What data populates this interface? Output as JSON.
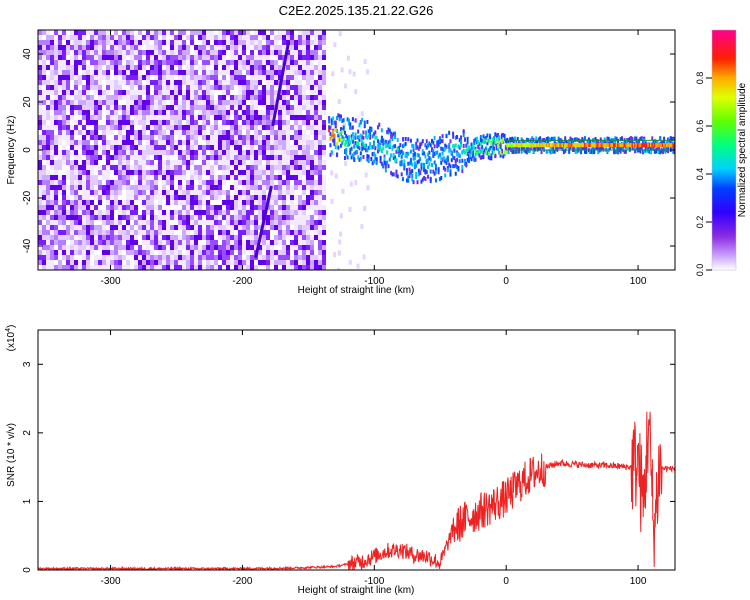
{
  "figure": {
    "title": "C2E2.2025.135.21.22.G26"
  },
  "chart_data": [
    {
      "type": "heatmap",
      "name": "spectrogram",
      "xlabel": "Height of straight line (km)",
      "ylabel": "Frequency (Hz)",
      "xlim": [
        -355,
        128
      ],
      "ylim": [
        -50,
        50
      ],
      "xticks": [
        -300,
        -200,
        -100,
        0,
        100
      ],
      "yticks": [
        -40,
        -20,
        0,
        20,
        40
      ],
      "colorbar": {
        "label": "Normalized spectral amplitude",
        "range": [
          0,
          1
        ],
        "ticks": [
          "0.0",
          "0.2",
          "0.4",
          "0.6",
          "0.8"
        ],
        "colors": [
          "#ffffff",
          "#b36bff",
          "#6a00ff",
          "#0000ff",
          "#00e6ff",
          "#00ff66",
          "#ccff00",
          "#ffaa00",
          "#ff0000",
          "#ff00aa"
        ]
      },
      "noise_region_x": [
        -355,
        -137
      ],
      "signal_track": [
        {
          "x": -135,
          "freq": 6,
          "amp": 0.9
        },
        {
          "x": -120,
          "freq": 5,
          "amp": 0.5
        },
        {
          "x": -100,
          "freq": 3,
          "amp": 0.45
        },
        {
          "x": -85,
          "freq": -2,
          "amp": 0.45
        },
        {
          "x": -70,
          "freq": -5,
          "amp": 0.4
        },
        {
          "x": -55,
          "freq": -4,
          "amp": 0.4
        },
        {
          "x": -40,
          "freq": -1,
          "amp": 0.45
        },
        {
          "x": -20,
          "freq": 1,
          "amp": 0.55
        },
        {
          "x": 0,
          "freq": 2,
          "amp": 0.7
        },
        {
          "x": 40,
          "freq": 2,
          "amp": 0.8
        },
        {
          "x": 80,
          "freq": 2,
          "amp": 0.85
        },
        {
          "x": 100,
          "freq": 2,
          "amp": 0.85
        },
        {
          "x": 128,
          "freq": 2,
          "amp": 0.85
        }
      ]
    },
    {
      "type": "line",
      "name": "snr",
      "xlabel": "Height of straight line (km)",
      "ylabel": "SNR (10 * v/v)",
      "yunit": "(x10",
      "yunit_exp": "4",
      "xlim": [
        -355,
        128
      ],
      "ylim": [
        0,
        3.5
      ],
      "xticks": [
        -300,
        -200,
        -100,
        0,
        100
      ],
      "yticks": [
        0,
        1,
        2,
        3
      ],
      "color": "#ee2222",
      "x": [
        -355,
        -300,
        -250,
        -200,
        -160,
        -130,
        -110,
        -100,
        -90,
        -80,
        -70,
        -60,
        -50,
        -40,
        -30,
        -20,
        -10,
        0,
        10,
        20,
        30,
        40,
        60,
        80,
        95,
        100,
        104,
        108,
        112,
        116,
        120,
        128
      ],
      "y": [
        0.02,
        0.02,
        0.02,
        0.02,
        0.03,
        0.05,
        0.12,
        0.2,
        0.28,
        0.3,
        0.22,
        0.2,
        0.1,
        0.6,
        0.75,
        0.85,
        0.95,
        1.05,
        1.25,
        1.4,
        1.5,
        1.56,
        1.53,
        1.52,
        1.5,
        1.6,
        0.9,
        2.2,
        0.5,
        1.5,
        1.48,
        1.48
      ]
    }
  ]
}
